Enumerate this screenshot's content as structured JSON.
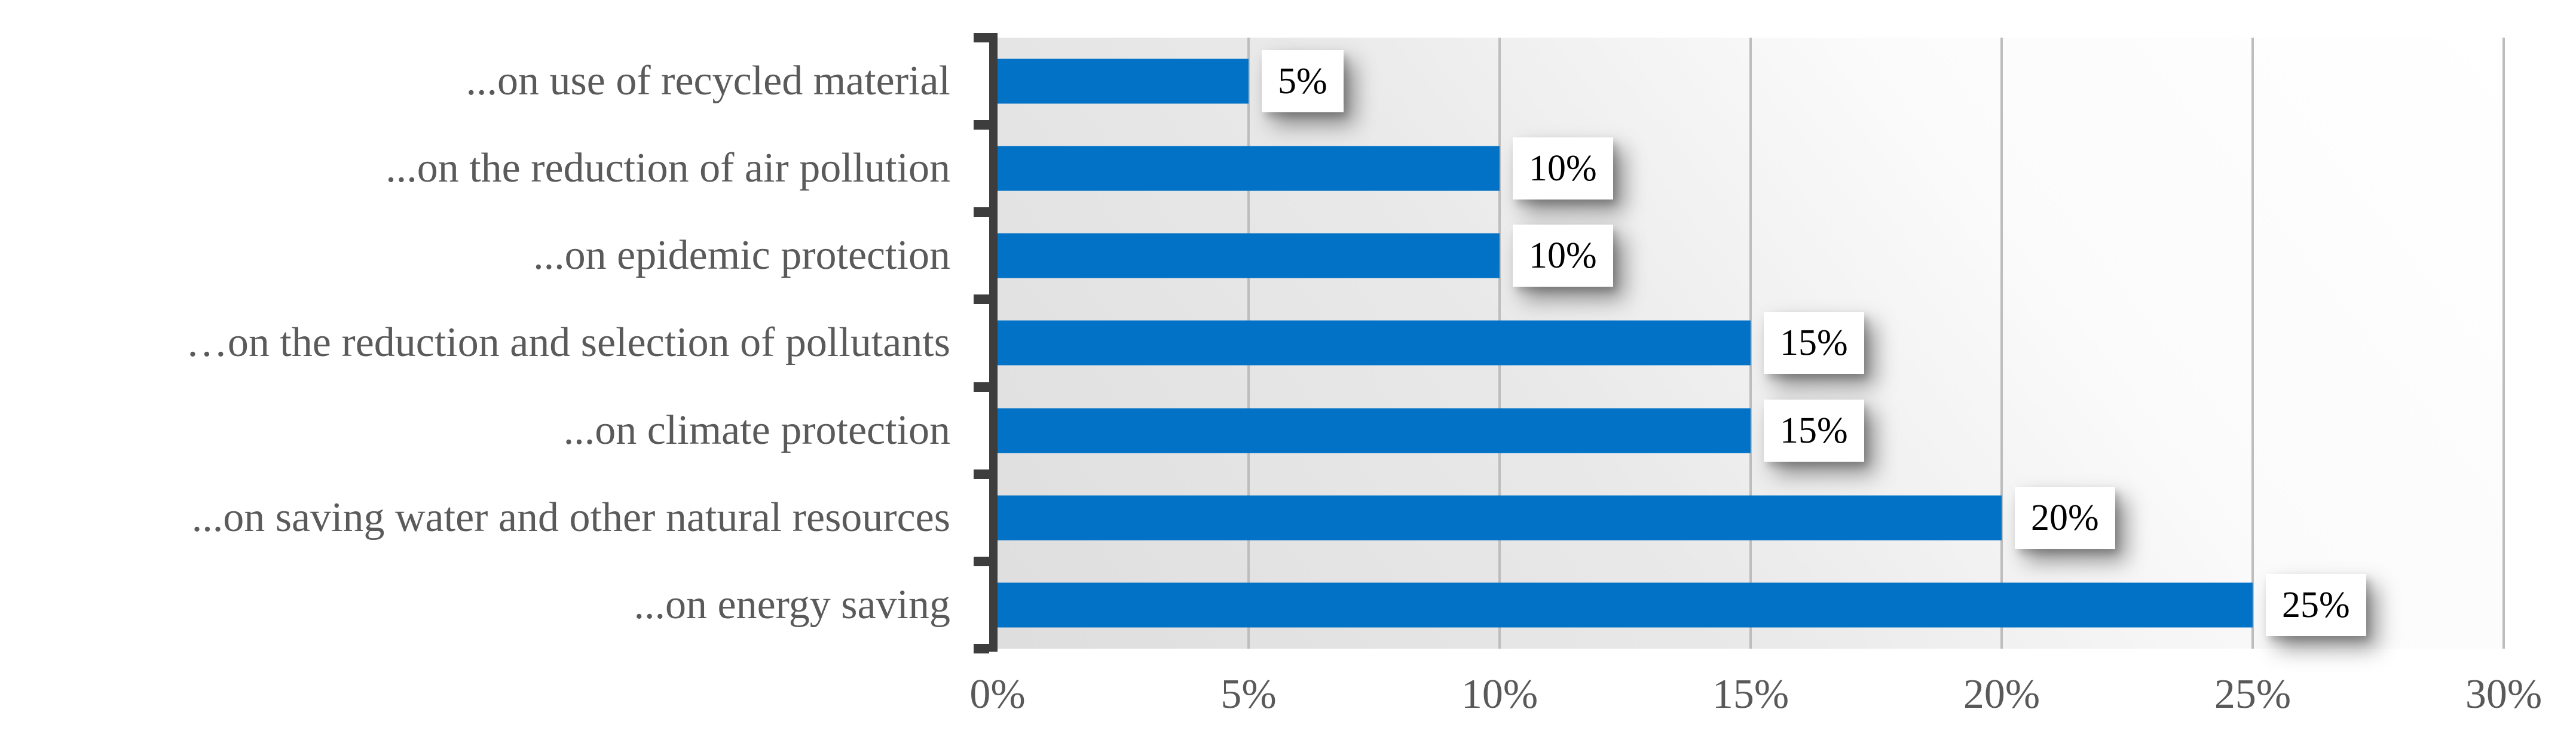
{
  "chart_data": {
    "type": "bar",
    "orientation": "horizontal",
    "title": "",
    "xlabel": "",
    "ylabel": "",
    "categories": [
      "...on use of recycled material",
      "...on the reduction of air pollution",
      "...on epidemic protection",
      "…on the reduction and selection of pollutants",
      "...on climate protection",
      "...on saving water and other natural resources",
      "...on energy saving"
    ],
    "values": [
      5,
      10,
      10,
      15,
      15,
      20,
      25
    ],
    "data_labels": [
      "5%",
      "10%",
      "10%",
      "15%",
      "15%",
      "20%",
      "25%"
    ],
    "xlim": [
      0,
      30
    ],
    "x_tick_step": 5,
    "x_tick_labels": [
      "0%",
      "5%",
      "10%",
      "15%",
      "20%",
      "25%",
      "30%"
    ],
    "grid": "vertical-only",
    "legend": "none"
  },
  "colors": {
    "bar": "#0272c6",
    "axis": "#3d3d3d",
    "gridline": "#bdbdbd",
    "category_text": "#5a5a5a",
    "tick_text": "#595959",
    "data_label_text": "#000000",
    "data_label_bg": "#ffffff",
    "plot_bg_dark": "#dedede",
    "plot_bg_light": "#ffffff"
  }
}
